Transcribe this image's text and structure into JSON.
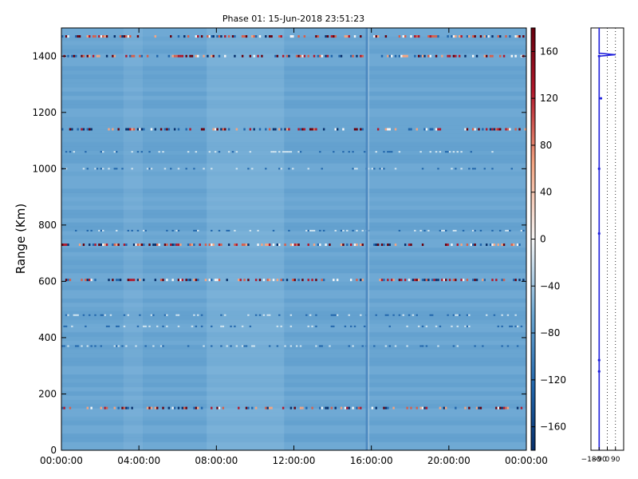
{
  "chart_data": [
    {
      "type": "heatmap",
      "title": "Phase 01: 15-Jun-2018 23:51:23",
      "ylabel": "Range (Km)",
      "xlabel": "",
      "ylim": [
        0,
        1500
      ],
      "xlim_hours": [
        0,
        24
      ],
      "x_ticks": [
        "00:00:00",
        "04:00:00",
        "08:00:00",
        "12:00:00",
        "16:00:00",
        "20:00:00",
        "00:00:00"
      ],
      "y_ticks": [
        0,
        200,
        400,
        600,
        800,
        1000,
        1200,
        1400
      ],
      "colorbar": {
        "range": [
          -180,
          180
        ],
        "ticks": [
          -160,
          -120,
          -80,
          -40,
          0,
          40,
          80,
          120,
          160
        ],
        "colormap": "RdBu_r",
        "low_color": "#08306b",
        "mid_color": "#f7f7f7",
        "high_color": "#67000d"
      },
      "background_value": -110,
      "background_color": "#6aa6d2",
      "features": {
        "data_gap_hour": 15.75,
        "strong_phase_rows_km": [
          1470,
          1400,
          1140,
          730,
          605,
          150
        ],
        "weak_rows_km": [
          1060,
          1000,
          780,
          480,
          440,
          370
        ],
        "quiet_window_hours": [
          7.5,
          11.5
        ]
      }
    },
    {
      "type": "line",
      "title": "",
      "xlim": [
        -180,
        180
      ],
      "x_ticks": [
        "-180",
        "-90",
        "0",
        "90"
      ],
      "ylim": [
        0,
        1500
      ],
      "grid": "vertical dotted",
      "series": [
        {
          "color": "#1f1fdc",
          "points": [
            {
              "x": -90,
              "y": 0
            },
            {
              "x": -90,
              "y": 1400
            },
            {
              "x": 90,
              "y": 1405
            },
            {
              "x": -90,
              "y": 1410
            },
            {
              "x": -90,
              "y": 1500
            }
          ]
        }
      ],
      "markers": [
        {
          "x": -90,
          "y": 1400
        },
        {
          "x": -70,
          "y": 1250
        },
        {
          "x": -90,
          "y": 1000
        },
        {
          "x": -90,
          "y": 770
        },
        {
          "x": -90,
          "y": 320
        },
        {
          "x": -90,
          "y": 280
        }
      ]
    }
  ]
}
